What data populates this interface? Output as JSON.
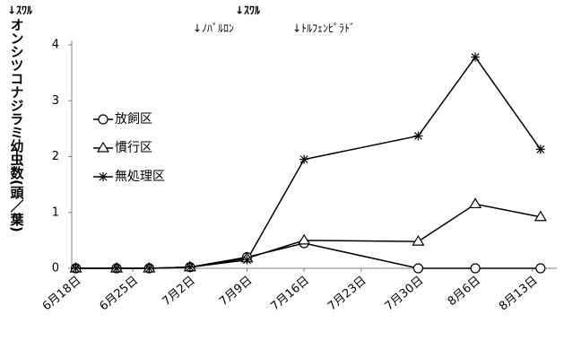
{
  "chart_data": {
    "type": "line",
    "y_label": "オンシツコナジラミ幼虫数(頭／葉)",
    "annotations": [
      "↓ｽﾜﾙ",
      "↓ｽﾜﾙ",
      "↓ﾉﾊﾞﾙﾛﾝ",
      "↓ﾄﾙﾌｪﾝﾋﾟﾗﾄﾞ"
    ],
    "x": [
      0,
      5,
      9,
      14,
      21,
      28,
      42,
      49,
      57
    ],
    "series": [
      {
        "name": "放飼区",
        "marker": "circle",
        "color": "#000000",
        "values": [
          0,
          0,
          0,
          0.02,
          0.2,
          0.45,
          0,
          0,
          0
        ]
      },
      {
        "name": "慣行区",
        "marker": "triangle",
        "color": "#000000",
        "values": [
          0,
          0,
          0,
          0.02,
          0.18,
          0.5,
          0.48,
          1.15,
          0.92
        ]
      },
      {
        "name": "無処理区",
        "marker": "asterisk",
        "color": "#000000",
        "values": [
          0,
          0,
          0,
          0.02,
          0.15,
          1.95,
          2.37,
          3.78,
          2.13
        ]
      }
    ],
    "xlim": [
      -0.5,
      59
    ],
    "xticks": [
      {
        "value": 0,
        "label": "6月18日"
      },
      {
        "value": 7,
        "label": "6月25日"
      },
      {
        "value": 14,
        "label": "7月2日"
      },
      {
        "value": 21,
        "label": "7月9日"
      },
      {
        "value": 28,
        "label": "7月16日"
      },
      {
        "value": 35,
        "label": "7月23日"
      },
      {
        "value": 42,
        "label": "7月30日"
      },
      {
        "value": 49,
        "label": "8月6日"
      },
      {
        "value": 56,
        "label": "8月13日"
      }
    ],
    "ylim": [
      0,
      4
    ],
    "yticks": [
      0,
      1,
      2,
      3,
      4
    ],
    "grid": false
  }
}
